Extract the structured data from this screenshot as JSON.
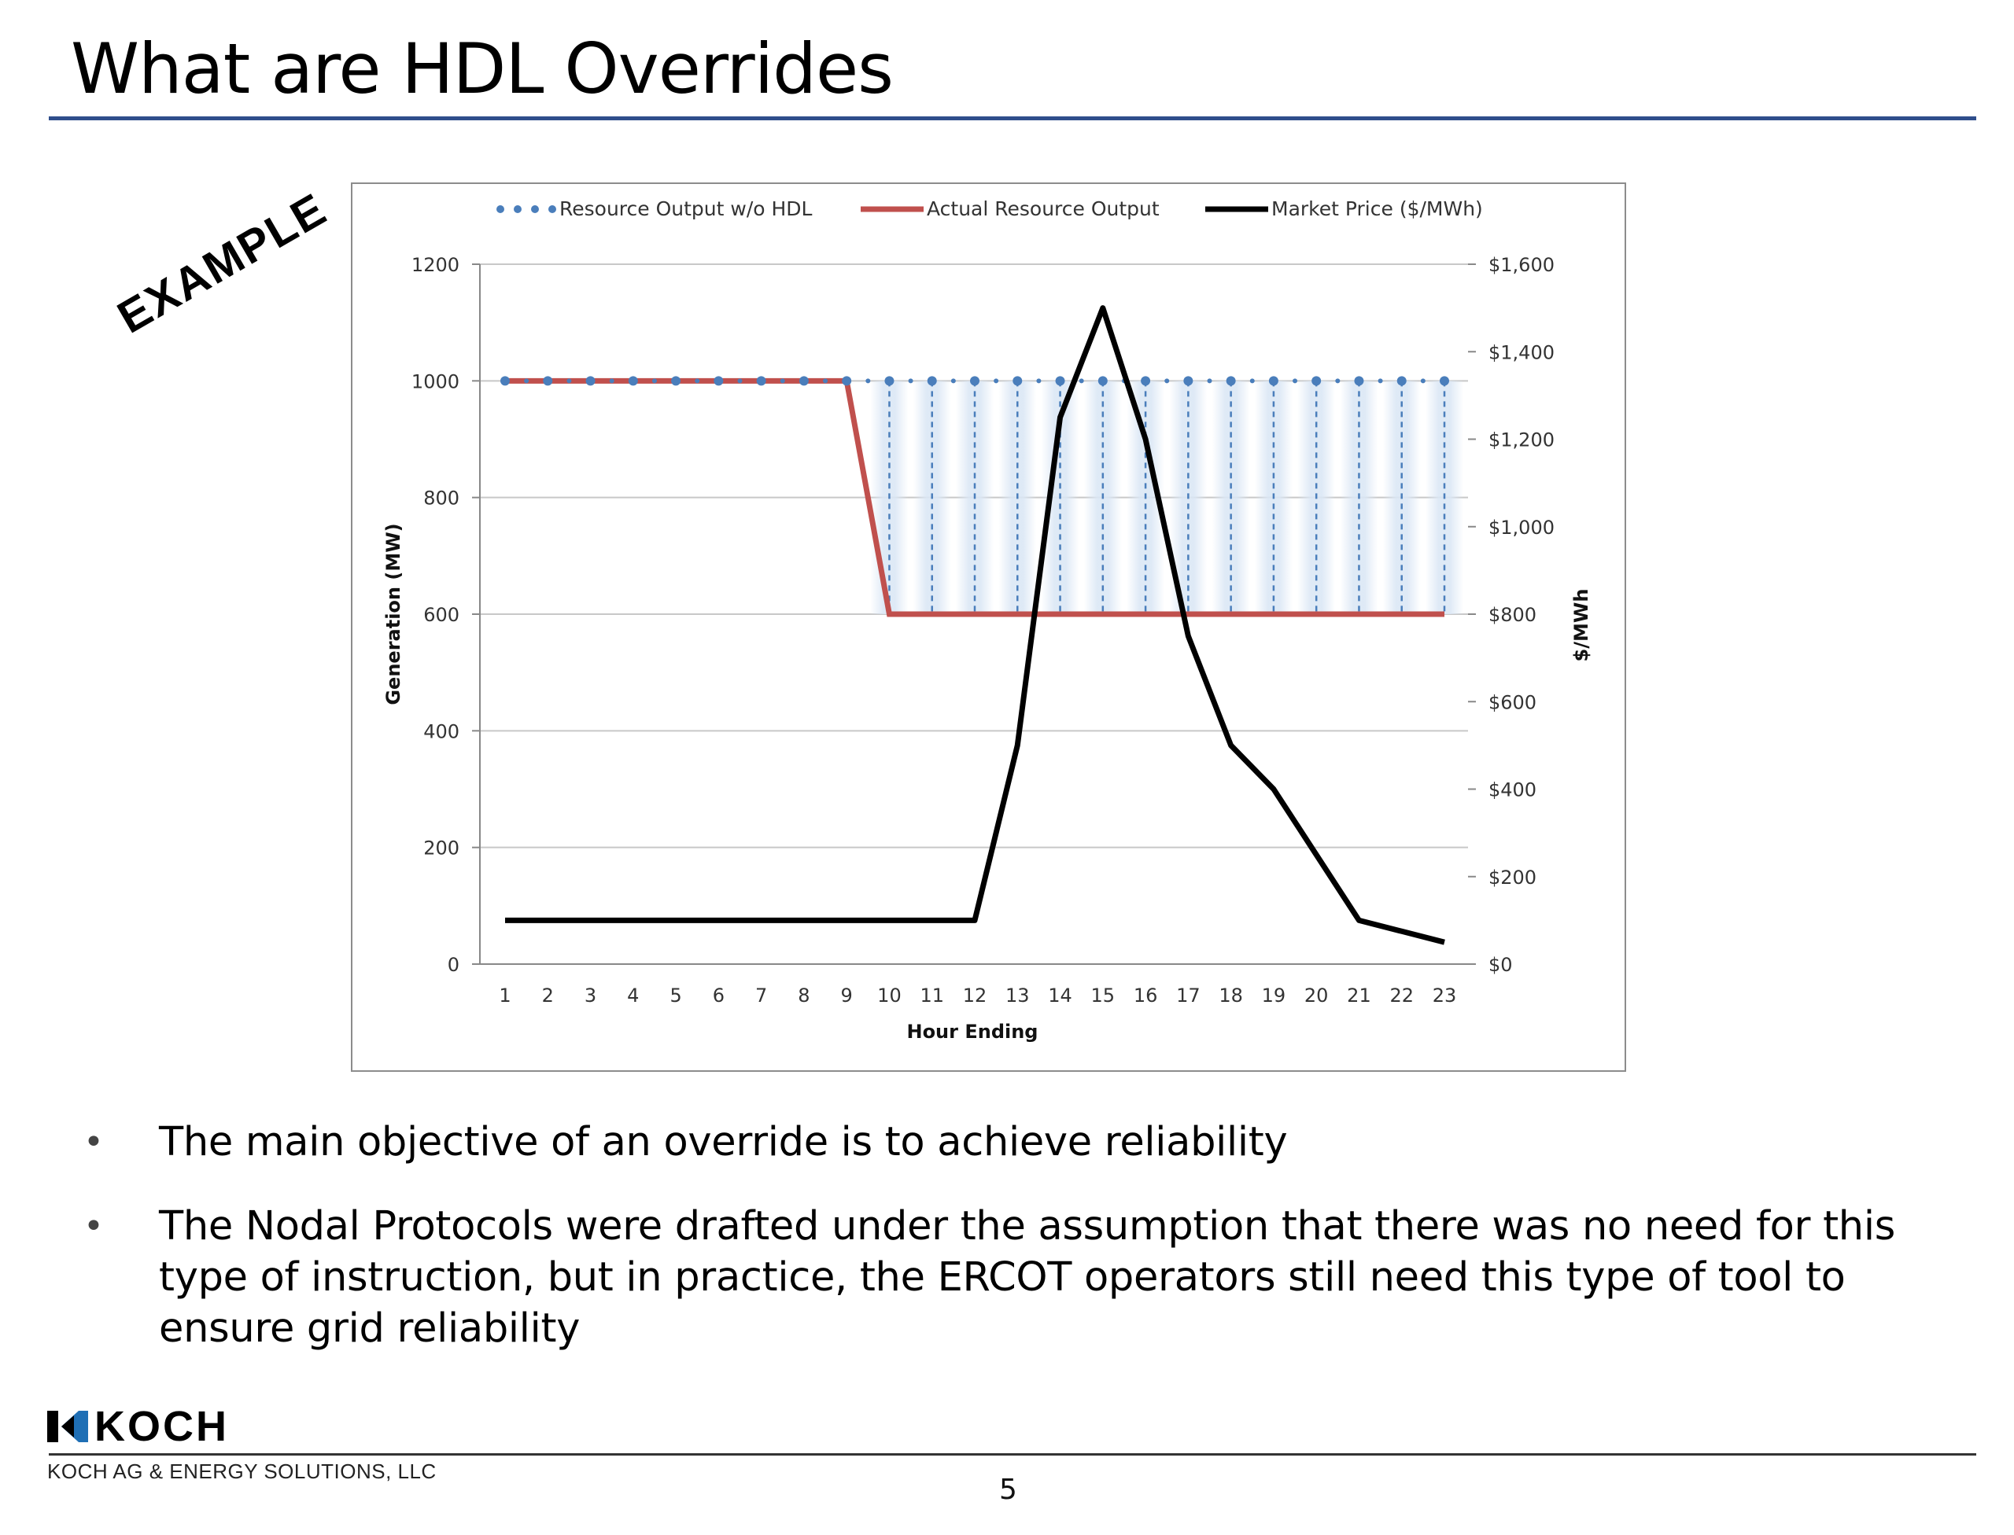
{
  "slide": {
    "title": "What are HDL Overrides",
    "stamp": "EXAMPLE",
    "bullets": [
      "The main objective of an override is to achieve reliability",
      "The Nodal Protocols were drafted under the assumption that there was no need for this type of instruction, but in practice, the ERCOT operators still need this type of tool to ensure grid reliability"
    ],
    "bullet_symbol": "•",
    "footer": {
      "logo_text": "KOCH",
      "company": "KOCH AG & ENERGY SOLUTIONS, LLC",
      "page_number": "5"
    },
    "colors": {
      "title_rule": "#2f4e8c",
      "blue_series": "#4a7ebb",
      "red_series": "#c0504d",
      "black_series": "#000000",
      "logo_blue": "#1f6fb5"
    }
  },
  "chart_data": {
    "type": "line",
    "xlabel": "Hour Ending",
    "ylabel": "Generation (MW)",
    "y2label": "$/MWh",
    "categories": [
      "1",
      "2",
      "3",
      "4",
      "5",
      "6",
      "7",
      "8",
      "9",
      "10",
      "11",
      "12",
      "13",
      "14",
      "15",
      "16",
      "17",
      "18",
      "19",
      "20",
      "21",
      "22",
      "23"
    ],
    "ylim": [
      0,
      1200
    ],
    "yticks": [
      0,
      200,
      400,
      600,
      800,
      1000,
      1200
    ],
    "y2lim": [
      0,
      1600
    ],
    "y2ticks": [
      0,
      200,
      400,
      600,
      800,
      1000,
      1200,
      1400,
      1600
    ],
    "y2tick_labels": [
      "$0",
      "$200",
      "$400",
      "$600",
      "$800",
      "$1,000",
      "$1,200",
      "$1,400",
      "$1,600"
    ],
    "grid": "horizontal",
    "legend": "top",
    "series": [
      {
        "name": "Resource Output w/o HDL",
        "axis": "left",
        "style": "dotted",
        "color": "#4a7ebb",
        "values": [
          1000,
          1000,
          1000,
          1000,
          1000,
          1000,
          1000,
          1000,
          1000,
          1000,
          1000,
          1000,
          1000,
          1000,
          1000,
          1000,
          1000,
          1000,
          1000,
          1000,
          1000,
          1000,
          1000
        ]
      },
      {
        "name": "Actual Resource Output",
        "axis": "left",
        "style": "solid",
        "color": "#c0504d",
        "values": [
          1000,
          1000,
          1000,
          1000,
          1000,
          1000,
          1000,
          1000,
          1000,
          600,
          600,
          600,
          600,
          600,
          600,
          600,
          600,
          600,
          600,
          600,
          600,
          600,
          600
        ]
      },
      {
        "name": "Market Price ($/MWh)",
        "axis": "right",
        "style": "solid",
        "color": "#000000",
        "values": [
          100,
          100,
          100,
          100,
          100,
          100,
          100,
          100,
          100,
          100,
          100,
          100,
          500,
          1250,
          1500,
          1200,
          750,
          500,
          400,
          250,
          100,
          75,
          50
        ]
      }
    ]
  }
}
